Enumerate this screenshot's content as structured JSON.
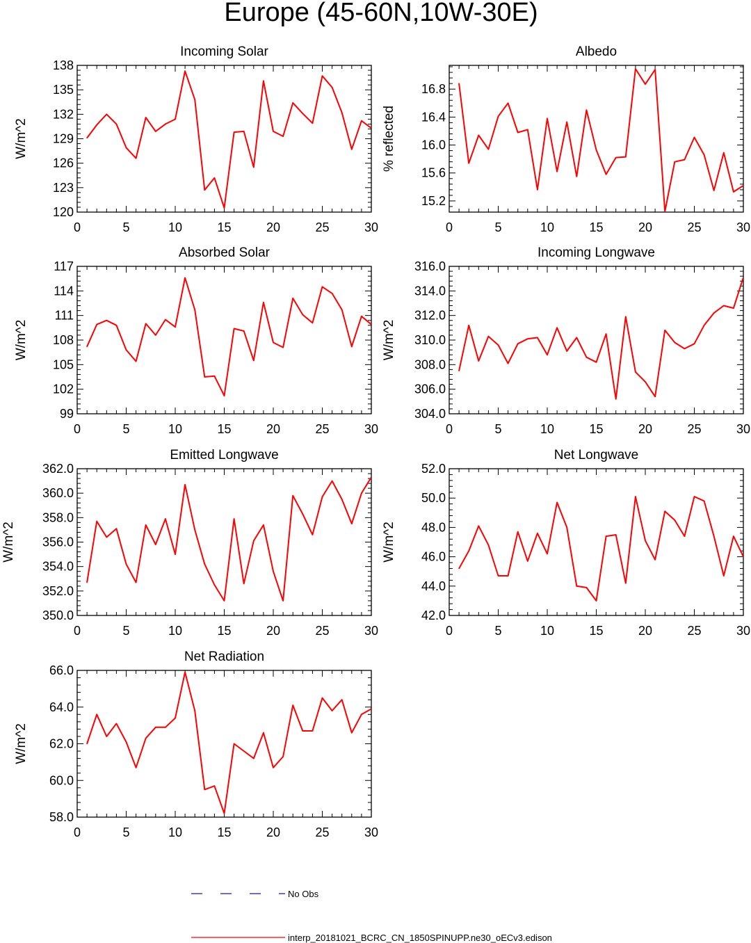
{
  "figure": {
    "title": "Europe (45-60N,10W-30E)",
    "legend": {
      "obs_label": "No Obs",
      "obs_color": "#1a1a8c",
      "model_label": "interp_20181021_BCRC_CN_1850SPINUPP.ne30_oECv3.edison",
      "model_color": "#ff0000"
    }
  },
  "chart_data": [
    {
      "type": "line",
      "title": "Incoming Solar",
      "ylabel": "W/m^2",
      "xlabel": "",
      "xlim": [
        0,
        30
      ],
      "ylim": [
        120,
        138
      ],
      "xticks": [
        "0",
        "5",
        "10",
        "15",
        "20",
        "25",
        "30"
      ],
      "yticks": [
        "120",
        "123",
        "126",
        "129",
        "132",
        "135",
        "138"
      ],
      "ytick_values": [
        120,
        123,
        126,
        129,
        132,
        135,
        138
      ],
      "x": [
        1,
        2,
        3,
        4,
        5,
        6,
        7,
        8,
        9,
        10,
        11,
        12,
        13,
        14,
        15,
        16,
        17,
        18,
        19,
        20,
        21,
        22,
        23,
        24,
        25,
        26,
        27,
        28,
        29,
        30
      ],
      "values": [
        129.1,
        130.7,
        132.0,
        130.8,
        127.9,
        126.6,
        131.6,
        129.9,
        130.8,
        131.4,
        137.3,
        133.8,
        122.7,
        124.2,
        120.5,
        129.8,
        129.9,
        125.5,
        136.1,
        129.9,
        129.3,
        133.4,
        132.1,
        130.9,
        136.7,
        135.3,
        132.2,
        127.7,
        131.2,
        130.3
      ],
      "series_name": "interp_20181021_BCRC_CN_1850SPINUPP.ne30_oECv3.edison"
    },
    {
      "type": "line",
      "title": "Albedo",
      "ylabel": "% reflected",
      "xlabel": "",
      "xlim": [
        0,
        30
      ],
      "ylim": [
        15.04,
        17.14
      ],
      "xticks": [
        "0",
        "5",
        "10",
        "15",
        "20",
        "25",
        "30"
      ],
      "yticks": [
        "15.2",
        "15.6",
        "16.0",
        "16.4",
        "16.8"
      ],
      "ytick_values": [
        15.2,
        15.6,
        16.0,
        16.4,
        16.8
      ],
      "x": [
        1,
        2,
        3,
        4,
        5,
        6,
        7,
        8,
        9,
        10,
        11,
        12,
        13,
        14,
        15,
        16,
        17,
        18,
        19,
        20,
        21,
        22,
        23,
        24,
        25,
        26,
        27,
        28,
        29,
        30
      ],
      "values": [
        16.88,
        15.74,
        16.14,
        15.94,
        16.41,
        16.6,
        16.18,
        16.22,
        15.36,
        16.38,
        15.62,
        16.33,
        15.55,
        16.5,
        15.93,
        15.58,
        15.82,
        15.83,
        17.09,
        16.87,
        17.08,
        15.05,
        15.76,
        15.79,
        16.11,
        15.86,
        15.35,
        15.89,
        15.33,
        15.42
      ],
      "series_name": "interp_20181021_BCRC_CN_1850SPINUPP.ne30_oECv3.edison"
    },
    {
      "type": "line",
      "title": "Absorbed Solar",
      "ylabel": "W/m^2",
      "xlabel": "",
      "xlim": [
        0,
        30
      ],
      "ylim": [
        99,
        117
      ],
      "xticks": [
        "0",
        "5",
        "10",
        "15",
        "20",
        "25",
        "30"
      ],
      "yticks": [
        "99",
        "102",
        "105",
        "108",
        "111",
        "114",
        "117"
      ],
      "ytick_values": [
        99,
        102,
        105,
        108,
        111,
        114,
        117
      ],
      "x": [
        1,
        2,
        3,
        4,
        5,
        6,
        7,
        8,
        9,
        10,
        11,
        12,
        13,
        14,
        15,
        16,
        17,
        18,
        19,
        20,
        21,
        22,
        23,
        24,
        25,
        26,
        27,
        28,
        29,
        30
      ],
      "values": [
        107.2,
        109.9,
        110.4,
        109.8,
        106.8,
        105.4,
        110.0,
        108.6,
        110.5,
        109.6,
        115.6,
        111.7,
        103.5,
        103.6,
        101.2,
        109.4,
        109.1,
        105.5,
        112.6,
        107.7,
        107.1,
        113.1,
        111.1,
        110.1,
        114.5,
        113.7,
        111.7,
        107.2,
        110.9,
        109.9
      ],
      "series_name": "interp_20181021_BCRC_CN_1850SPINUPP.ne30_oECv3.edison"
    },
    {
      "type": "line",
      "title": "Incoming Longwave",
      "ylabel": "W/m^2",
      "xlabel": "",
      "xlim": [
        0,
        30
      ],
      "ylim": [
        304,
        316
      ],
      "xticks": [
        "0",
        "5",
        "10",
        "15",
        "20",
        "25",
        "30"
      ],
      "yticks": [
        "304.0",
        "306.0",
        "308.0",
        "310.0",
        "312.0",
        "314.0",
        "316.0"
      ],
      "ytick_values": [
        304,
        306,
        308,
        310,
        312,
        314,
        316
      ],
      "x": [
        1,
        2,
        3,
        4,
        5,
        6,
        7,
        8,
        9,
        10,
        11,
        12,
        13,
        14,
        15,
        16,
        17,
        18,
        19,
        20,
        21,
        22,
        23,
        24,
        25,
        26,
        27,
        28,
        29,
        30
      ],
      "values": [
        307.5,
        311.2,
        308.3,
        310.3,
        309.6,
        308.1,
        309.7,
        310.1,
        310.2,
        308.8,
        311.0,
        309.1,
        310.2,
        308.6,
        308.2,
        310.5,
        305.2,
        311.9,
        307.4,
        306.6,
        305.4,
        310.8,
        309.8,
        309.3,
        309.7,
        311.2,
        312.2,
        312.8,
        312.6,
        315.1
      ],
      "series_name": "interp_20181021_BCRC_CN_1850SPINUPP.ne30_oECv3.edison"
    },
    {
      "type": "line",
      "title": "Emitted Longwave",
      "ylabel": "W/m^2",
      "xlabel": "",
      "xlim": [
        0,
        30
      ],
      "ylim": [
        350,
        362
      ],
      "xticks": [
        "0",
        "5",
        "10",
        "15",
        "20",
        "25",
        "30"
      ],
      "yticks": [
        "350.0",
        "352.0",
        "354.0",
        "356.0",
        "358.0",
        "360.0",
        "362.0"
      ],
      "ytick_values": [
        350,
        352,
        354,
        356,
        358,
        360,
        362
      ],
      "x": [
        1,
        2,
        3,
        4,
        5,
        6,
        7,
        8,
        9,
        10,
        11,
        12,
        13,
        14,
        15,
        16,
        17,
        18,
        19,
        20,
        21,
        22,
        23,
        24,
        25,
        26,
        27,
        28,
        29,
        30
      ],
      "values": [
        352.7,
        357.7,
        356.4,
        357.1,
        354.2,
        352.7,
        357.4,
        355.8,
        357.9,
        355.0,
        360.7,
        357.0,
        354.2,
        352.5,
        351.2,
        357.9,
        352.6,
        356.1,
        357.4,
        353.6,
        351.2,
        359.8,
        358.3,
        356.6,
        359.7,
        361.0,
        359.5,
        357.5,
        360.0,
        361.3
      ],
      "series_name": "interp_20181021_BCRC_CN_1850SPINUPP.ne30_oECv3.edison"
    },
    {
      "type": "line",
      "title": "Net Longwave",
      "ylabel": "W/m^2",
      "xlabel": "",
      "xlim": [
        0,
        30
      ],
      "ylim": [
        42,
        52
      ],
      "xticks": [
        "0",
        "5",
        "10",
        "15",
        "20",
        "25",
        "30"
      ],
      "yticks": [
        "42.0",
        "44.0",
        "46.0",
        "48.0",
        "50.0",
        "52.0"
      ],
      "ytick_values": [
        42,
        44,
        46,
        48,
        50,
        52
      ],
      "x": [
        1,
        2,
        3,
        4,
        5,
        6,
        7,
        8,
        9,
        10,
        11,
        12,
        13,
        14,
        15,
        16,
        17,
        18,
        19,
        20,
        21,
        22,
        23,
        24,
        25,
        26,
        27,
        28,
        29,
        30
      ],
      "values": [
        45.2,
        46.4,
        48.1,
        46.8,
        44.7,
        44.7,
        47.7,
        45.7,
        47.6,
        46.2,
        49.7,
        48.0,
        44.0,
        43.9,
        43.0,
        47.4,
        47.5,
        44.2,
        50.1,
        47.1,
        45.8,
        49.1,
        48.5,
        47.4,
        50.1,
        49.8,
        47.4,
        44.7,
        47.4,
        46.0
      ],
      "series_name": "interp_20181021_BCRC_CN_1850SPINUPP.ne30_oECv3.edison"
    },
    {
      "type": "line",
      "title": "Net Radiation",
      "ylabel": "W/m^2",
      "xlabel": "",
      "xlim": [
        0,
        30
      ],
      "ylim": [
        58,
        66
      ],
      "xticks": [
        "0",
        "5",
        "10",
        "15",
        "20",
        "25",
        "30"
      ],
      "yticks": [
        "58.0",
        "60.0",
        "62.0",
        "64.0",
        "66.0"
      ],
      "ytick_values": [
        58,
        60,
        62,
        64,
        66
      ],
      "x": [
        1,
        2,
        3,
        4,
        5,
        6,
        7,
        8,
        9,
        10,
        11,
        12,
        13,
        14,
        15,
        16,
        17,
        18,
        19,
        20,
        21,
        22,
        23,
        24,
        25,
        26,
        27,
        28,
        29,
        30
      ],
      "values": [
        62.0,
        63.6,
        62.4,
        63.1,
        62.1,
        60.7,
        62.3,
        62.9,
        62.9,
        63.4,
        65.9,
        63.8,
        59.5,
        59.7,
        58.2,
        62.0,
        61.6,
        61.2,
        62.6,
        60.7,
        61.3,
        64.1,
        62.7,
        62.7,
        64.5,
        63.8,
        64.4,
        62.6,
        63.6,
        63.9
      ],
      "series_name": "interp_20181021_BCRC_CN_1850SPINUPP.ne30_oECv3.edison"
    }
  ]
}
